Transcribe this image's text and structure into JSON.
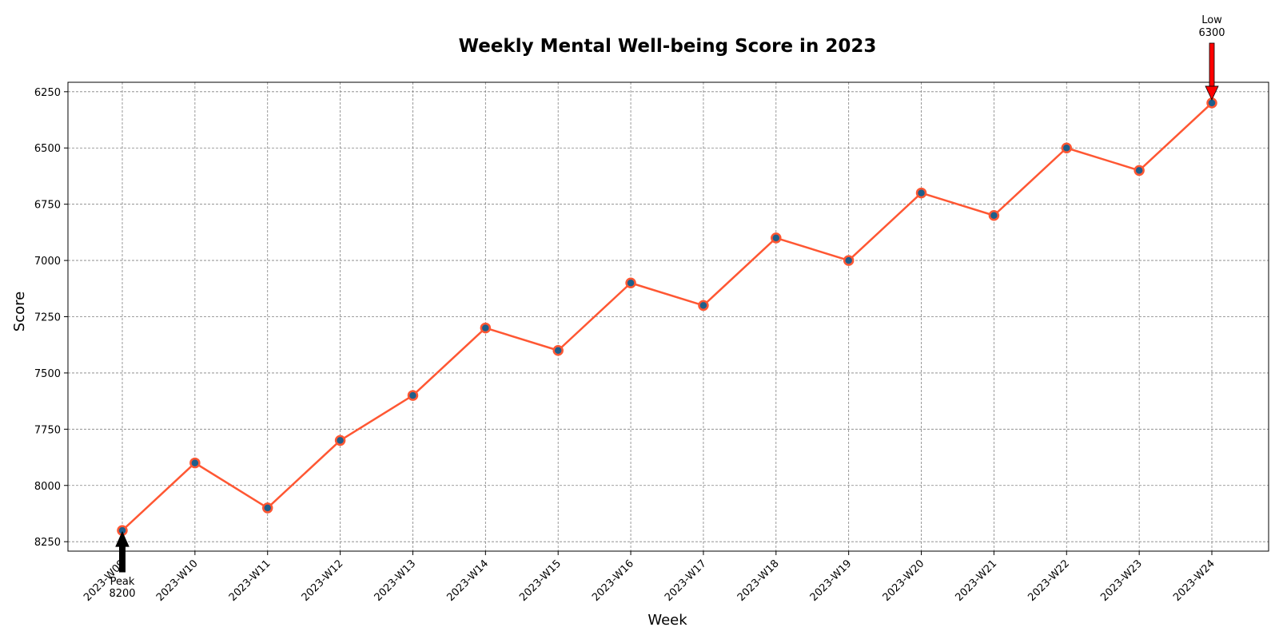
{
  "chart_data": {
    "type": "line",
    "title": "Weekly Mental Well-being Score in 2023",
    "xlabel": "Week",
    "ylabel": "Score",
    "categories": [
      "2023-W09",
      "2023-W10",
      "2023-W11",
      "2023-W12",
      "2023-W13",
      "2023-W14",
      "2023-W15",
      "2023-W16",
      "2023-W17",
      "2023-W18",
      "2023-W19",
      "2023-W20",
      "2023-W21",
      "2023-W22",
      "2023-W23",
      "2023-W24"
    ],
    "series": [
      {
        "values": [
          8200,
          7900,
          8100,
          7800,
          7600,
          7300,
          7400,
          7100,
          7200,
          6900,
          7000,
          6700,
          6800,
          6500,
          6600,
          6300
        ]
      }
    ],
    "y_axis_inverted": true,
    "ylim": [
      6208,
      8292
    ],
    "yticks": [
      6250,
      6500,
      6750,
      7000,
      7250,
      7500,
      7750,
      8000,
      8250
    ],
    "grid": true,
    "line_color": "#ff5733",
    "marker_fill": "#1f5f8b",
    "annotations": [
      {
        "label": "Peak",
        "value_text": "8200",
        "category": "2023-W09",
        "arrow_color": "#000000"
      },
      {
        "label": "Low",
        "value_text": "6300",
        "category": "2023-W24",
        "arrow_color": "#ff0000"
      }
    ]
  }
}
